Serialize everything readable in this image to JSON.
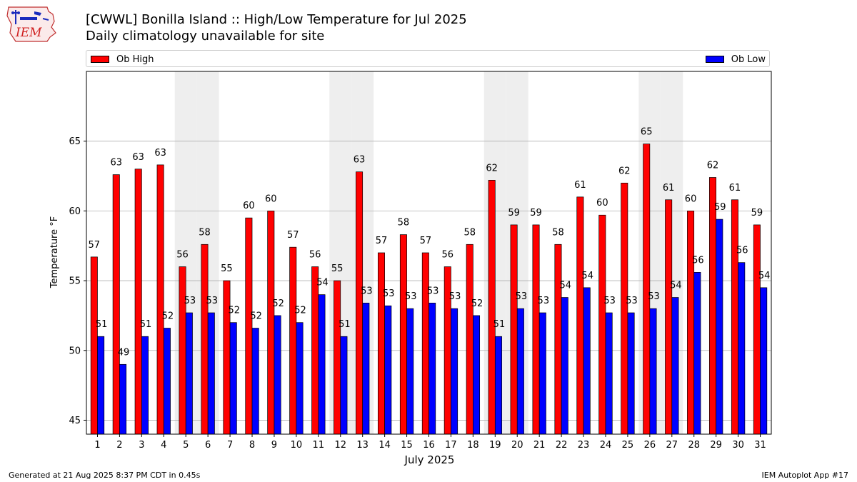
{
  "header": {
    "logo_text": "IEM",
    "title": "[CWWL] Bonilla Island :: High/Low Temperature for Jul 2025",
    "subtitle": "Daily climatology unavailable for site"
  },
  "footer": {
    "generated": "Generated at 21 Aug 2025 8:37 PM CDT in 0.45s",
    "app": "IEM Autoplot App #17"
  },
  "colors": {
    "high": "#ff0000",
    "low": "#0000ff",
    "weekend_band": "#eeeeee",
    "grid": "#b0b0b0"
  },
  "chart_data": {
    "type": "bar",
    "xlabel": "July 2025",
    "ylabel": "Temperature °F",
    "ylim": [
      44,
      70
    ],
    "yticks": [
      45,
      50,
      55,
      60,
      65
    ],
    "grid": "horizontal",
    "legend_placement": "top",
    "categories": [
      "1",
      "2",
      "3",
      "4",
      "5",
      "6",
      "7",
      "8",
      "9",
      "10",
      "11",
      "12",
      "13",
      "14",
      "15",
      "16",
      "17",
      "18",
      "19",
      "20",
      "21",
      "22",
      "23",
      "24",
      "25",
      "26",
      "27",
      "28",
      "29",
      "30",
      "31"
    ],
    "shaded_days": [
      5,
      6,
      12,
      13,
      19,
      20,
      26,
      27
    ],
    "series": [
      {
        "name": "Ob High",
        "values": [
          56.7,
          62.6,
          63.0,
          63.3,
          56.0,
          57.6,
          55.0,
          59.5,
          60.0,
          57.4,
          56.0,
          55.0,
          62.8,
          57.0,
          58.3,
          57.0,
          56.0,
          57.6,
          62.2,
          59.0,
          59.0,
          57.6,
          61.0,
          59.7,
          62.0,
          64.8,
          60.8,
          60.0,
          62.4,
          60.8,
          59.0
        ],
        "labels": [
          "57",
          "63",
          "63",
          "63",
          "56",
          "58",
          "55",
          "60",
          "60",
          "57",
          "56",
          "55",
          "63",
          "57",
          "58",
          "57",
          "56",
          "58",
          "62",
          "59",
          "59",
          "58",
          "61",
          "60",
          "62",
          "65",
          "61",
          "60",
          "62",
          "61",
          "59"
        ]
      },
      {
        "name": "Ob Low",
        "values": [
          51.0,
          49.0,
          51.0,
          51.6,
          52.7,
          52.7,
          52.0,
          51.6,
          52.5,
          52.0,
          54.0,
          51.0,
          53.4,
          53.2,
          53.0,
          53.4,
          53.0,
          52.5,
          51.0,
          53.0,
          52.7,
          53.8,
          54.5,
          52.7,
          52.7,
          53.0,
          53.8,
          55.6,
          59.4,
          56.3,
          54.5
        ],
        "labels": [
          "51",
          "49",
          "51",
          "52",
          "53",
          "53",
          "52",
          "52",
          "52",
          "52",
          "54",
          "51",
          "53",
          "53",
          "53",
          "53",
          "53",
          "52",
          "51",
          "53",
          "53",
          "54",
          "54",
          "53",
          "53",
          "53",
          "54",
          "56",
          "59",
          "56",
          "54"
        ]
      }
    ]
  }
}
